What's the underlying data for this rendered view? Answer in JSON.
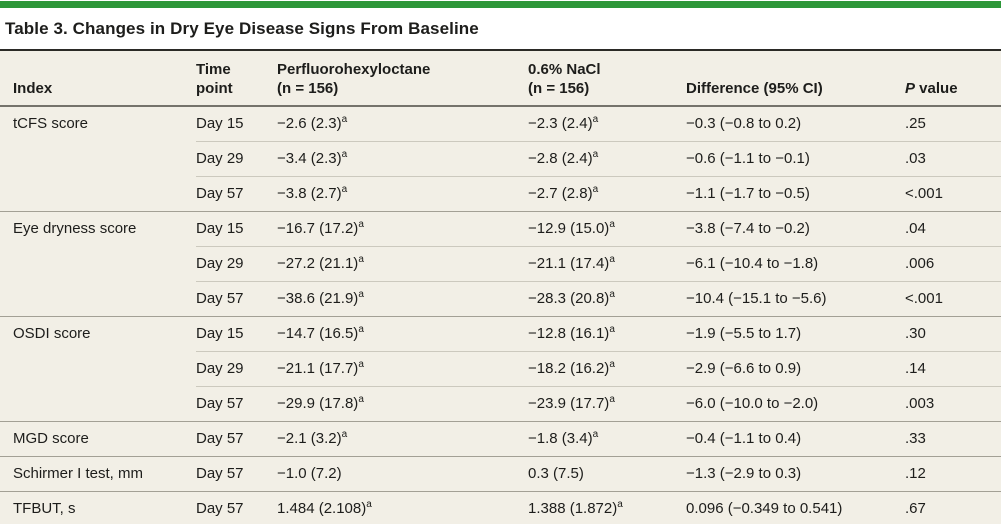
{
  "colors": {
    "accent_green": "#2d9739",
    "table_bg": "#f2efe6",
    "text": "#1d1d1b",
    "rule_dark": "#2b2a26",
    "rule_header": "#75736b",
    "rule_group": "#a3a095",
    "rule_row": "#ccc9be"
  },
  "table": {
    "title": "Table 3. Changes in Dry Eye Disease Signs From Baseline",
    "header": {
      "index": "Index",
      "time_point_line1": "Time",
      "time_point_line2": "point",
      "pfho_line1": "Perfluorohexyloctane",
      "pfho_line2": "(n = 156)",
      "nacl_line1": "0.6% NaCl",
      "nacl_line2": "(n = 156)",
      "difference": "Difference (95% CI)",
      "p_italic": "P",
      "p_rest": " value"
    },
    "footnote_marker": "a",
    "groups": [
      {
        "index": "tCFS score",
        "rows": [
          {
            "time": "Day 15",
            "pfho": "−2.6 (2.3)",
            "pfho_sup": "a",
            "nacl": "−2.3 (2.4)",
            "nacl_sup": "a",
            "diff": "−0.3 (−0.8 to 0.2)",
            "p": ".25"
          },
          {
            "time": "Day 29",
            "pfho": "−3.4 (2.3)",
            "pfho_sup": "a",
            "nacl": "−2.8 (2.4)",
            "nacl_sup": "a",
            "diff": "−0.6 (−1.1 to −0.1)",
            "p": ".03"
          },
          {
            "time": "Day 57",
            "pfho": "−3.8 (2.7)",
            "pfho_sup": "a",
            "nacl": "−2.7 (2.8)",
            "nacl_sup": "a",
            "diff": "−1.1 (−1.7 to −0.5)",
            "p": "<.001"
          }
        ]
      },
      {
        "index": "Eye dryness score",
        "rows": [
          {
            "time": "Day 15",
            "pfho": "−16.7 (17.2)",
            "pfho_sup": "a",
            "nacl": "−12.9 (15.0)",
            "nacl_sup": "a",
            "diff": "−3.8 (−7.4 to −0.2)",
            "p": ".04"
          },
          {
            "time": "Day 29",
            "pfho": "−27.2 (21.1)",
            "pfho_sup": "a",
            "nacl": "−21.1 (17.4)",
            "nacl_sup": "a",
            "diff": "−6.1 (−10.4 to −1.8)",
            "p": ".006"
          },
          {
            "time": "Day 57",
            "pfho": "−38.6 (21.9)",
            "pfho_sup": "a",
            "nacl": "−28.3 (20.8)",
            "nacl_sup": "a",
            "diff": "−10.4 (−15.1 to −5.6)",
            "p": "<.001"
          }
        ]
      },
      {
        "index": "OSDI score",
        "rows": [
          {
            "time": "Day 15",
            "pfho": "−14.7 (16.5)",
            "pfho_sup": "a",
            "nacl": "−12.8 (16.1)",
            "nacl_sup": "a",
            "diff": "−1.9 (−5.5 to 1.7)",
            "p": ".30"
          },
          {
            "time": "Day 29",
            "pfho": "−21.1 (17.7)",
            "pfho_sup": "a",
            "nacl": "−18.2 (16.2)",
            "nacl_sup": "a",
            "diff": "−2.9 (−6.6 to 0.9)",
            "p": ".14"
          },
          {
            "time": "Day 57",
            "pfho": "−29.9 (17.8)",
            "pfho_sup": "a",
            "nacl": "−23.9 (17.7)",
            "nacl_sup": "a",
            "diff": "−6.0 (−10.0 to −2.0)",
            "p": ".003"
          }
        ]
      },
      {
        "index": "MGD score",
        "rows": [
          {
            "time": "Day 57",
            "pfho": "−2.1 (3.2)",
            "pfho_sup": "a",
            "nacl": "−1.8 (3.4)",
            "nacl_sup": "a",
            "diff": "−0.4 (−1.1 to 0.4)",
            "p": ".33"
          }
        ]
      },
      {
        "index": "Schirmer I test, mm",
        "rows": [
          {
            "time": "Day 57",
            "pfho": "−1.0 (7.2)",
            "pfho_sup": "",
            "nacl": "0.3 (7.5)",
            "nacl_sup": "",
            "diff": "−1.3 (−2.9 to 0.3)",
            "p": ".12"
          }
        ]
      },
      {
        "index": "TFBUT, s",
        "rows": [
          {
            "time": "Day 57",
            "pfho": "1.484 (2.108)",
            "pfho_sup": "a",
            "nacl": "1.388 (1.872)",
            "nacl_sup": "a",
            "diff": "0.096 (−0.349 to 0.541)",
            "p": ".67"
          }
        ]
      }
    ]
  }
}
